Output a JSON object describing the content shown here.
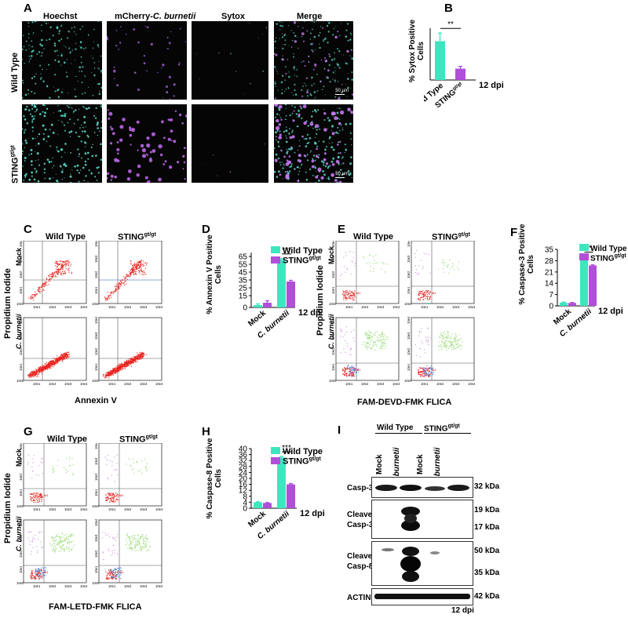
{
  "panelA": {
    "letter": "A",
    "columns": [
      "Hoechst",
      "mCherry-",
      "C. burnetii",
      "Sytox",
      "Merge"
    ],
    "rows": [
      "Wild Type",
      "STING",
      "gt/gt"
    ],
    "scale": "50 µm"
  },
  "panelB": {
    "letter": "B",
    "ylabel1": "% Sytox Positive",
    "ylabel2": "Cells",
    "sig": "**",
    "dpi": "12 dpi"
  },
  "flow": {
    "wt": "Wild Type",
    "sting": "STING",
    "sup": "gt/gt",
    "pi": "Propidium Iodide",
    "mock": "Mock",
    "cb": "C. burnetii",
    "annexin": "Annexin V",
    "flicaE": "FAM-DEVD-FMK FLICA",
    "flicaG": "FAM-LETD-FMK FLICA",
    "m1": "M1",
    "ticks": [
      "10e0",
      "10e1",
      "10e2",
      "10e3",
      "10e4"
    ]
  },
  "panels": {
    "C": "C",
    "D": "D",
    "E": "E",
    "F": "F",
    "G": "G",
    "H": "H",
    "I": "I"
  },
  "panelD": {
    "ylabel1": "% Annexin V Positive",
    "ylabel2": "Cells"
  },
  "panelF": {
    "ylabel1": "% Caspase-3 Positive",
    "ylabel2": "Cells"
  },
  "panelH": {
    "ylabel1": "% Caspase-8 Positive",
    "ylabel2": "Cells"
  },
  "legend": {
    "wt": "Wild Type",
    "sting": "STING",
    "sup": "gt/gt"
  },
  "colors": {
    "wt": "#3ee6c0",
    "sting": "#b04fd8",
    "flowRed": "#e8231e",
    "flowGreen": "#8fd96a",
    "flowBlue": "#4d7fd6",
    "flowPink": "#c98ad9"
  },
  "chart_data": [
    {
      "id": "B",
      "type": "bar",
      "categories": [
        "Wild Type",
        "STING gt/gt"
      ],
      "values": [
        12,
        3.5
      ],
      "errors": [
        2.5,
        0.7
      ],
      "ylim": [
        0,
        16
      ],
      "yticks": [],
      "annotation": "**",
      "xnote": "12 dpi"
    },
    {
      "id": "D",
      "type": "bar",
      "categories": [
        "Mock",
        "C. burnetii"
      ],
      "series": [
        {
          "name": "Wild Type",
          "values": [
            3,
            61
          ],
          "errors": [
            1.5,
            1.2
          ]
        },
        {
          "name": "STING gt/gt",
          "values": [
            6,
            33
          ],
          "errors": [
            2.5,
            1.5
          ]
        }
      ],
      "ylim": [
        0,
        70
      ],
      "yticks": [
        0,
        15,
        25,
        35,
        45,
        55,
        65
      ],
      "annotation": "***",
      "xnote": "12 dpi"
    },
    {
      "id": "F",
      "type": "bar",
      "categories": [
        "Mock",
        "C. burnetii"
      ],
      "series": [
        {
          "name": "Wild Type",
          "values": [
            2,
            30
          ],
          "errors": [
            0.3,
            0.4
          ]
        },
        {
          "name": "STING gt/gt",
          "values": [
            1.8,
            25
          ],
          "errors": [
            0.3,
            0.4
          ]
        }
      ],
      "ylim": [
        0,
        35
      ],
      "yticks": [
        0,
        7,
        14,
        21,
        28,
        35
      ],
      "annotation": "**",
      "xnote": "12 dpi"
    },
    {
      "id": "H",
      "type": "bar",
      "categories": [
        "Mock",
        "C. burnetii"
      ],
      "series": [
        {
          "name": "Wild Type",
          "values": [
            4,
            34
          ],
          "errors": [
            0.4,
            0.7
          ]
        },
        {
          "name": "STING gt/gt",
          "values": [
            3.5,
            16
          ],
          "errors": [
            0.3,
            0.5
          ]
        }
      ],
      "ylim": [
        0,
        40
      ],
      "yticks": [
        0,
        4,
        8,
        12,
        16,
        20,
        24,
        28,
        32,
        36,
        40
      ],
      "annotation": "***",
      "xnote": "12 dpi"
    }
  ],
  "panelI": {
    "groups": [
      "Wild Type",
      "STING",
      "gt/gt"
    ],
    "lanes": [
      "Mock",
      "C. burnetii",
      "Mock",
      "C. burnetii"
    ],
    "rows": [
      "Casp-3",
      "Cleaved",
      "Casp-3",
      "Cleaved",
      "Casp-8",
      "ACTIN"
    ],
    "kda": [
      "32 kDa",
      "19 kDa",
      "17 kDa",
      "50 kDa",
      "35 kDa",
      "42 kDa"
    ],
    "dpi": "12 dpi"
  }
}
